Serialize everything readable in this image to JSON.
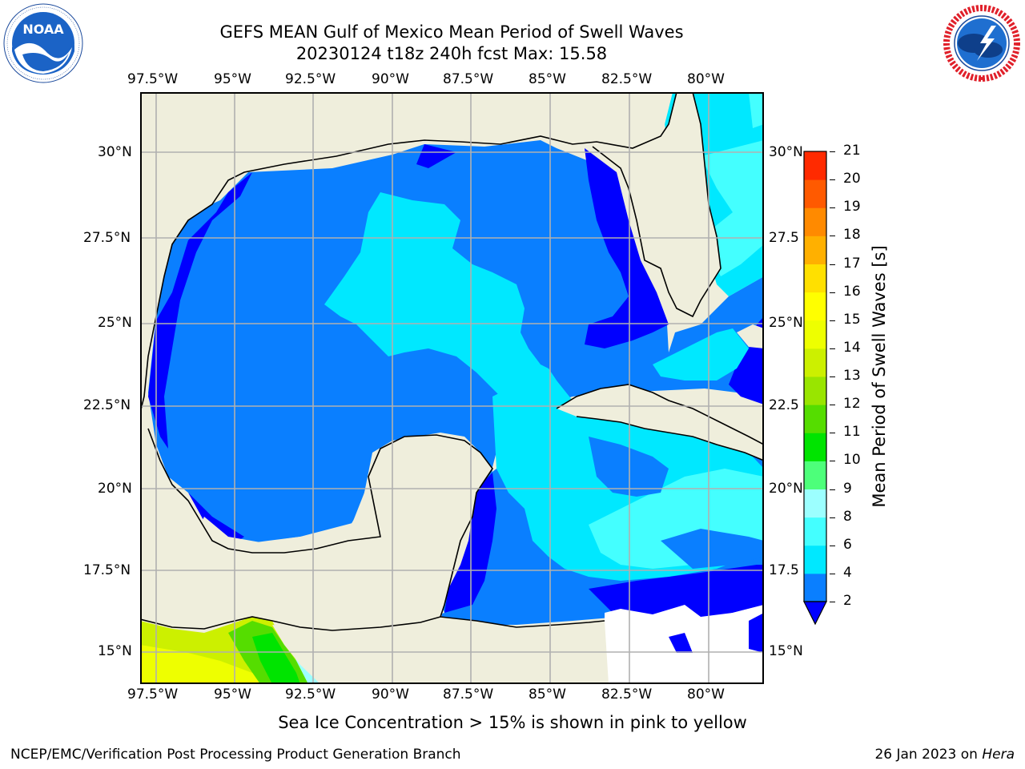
{
  "header": {
    "title_line1": "GEFS MEAN Gulf of Mexico Mean Period of Swell Waves",
    "title_line2": "20230124 t18z 240h fcst   Max: 15.58"
  },
  "logos": {
    "left": {
      "name": "NOAA",
      "ring_text": "NATIONAL OCEANIC AND ATMOSPHERIC ADMINISTRATION · U.S. DEPARTMENT OF COMMERCE"
    },
    "right": {
      "name": "NATIONAL WEATHER SERVICE"
    }
  },
  "map": {
    "lon_labels": [
      "97.5°W",
      "95°W",
      "92.5°W",
      "90°W",
      "87.5°W",
      "85°W",
      "82.5°W",
      "80°W"
    ],
    "lat_labels_left": [
      "30°N",
      "27.5°N",
      "25°N",
      "22.5°N",
      "20°N",
      "17.5°N",
      "15°N"
    ],
    "lat_labels_right": [
      "30°N",
      "27.5",
      "25°N",
      "22.5",
      "20°N",
      "17.5",
      "15°N"
    ],
    "colors": {
      "land": "#efeedc",
      "missing": "#ffffff",
      "grid": "#b0b0b0",
      "coast": "#000000"
    }
  },
  "colorbar": {
    "label": "Mean Period of Swell Waves [s]",
    "ticks": [
      "2",
      "4",
      "6",
      "8",
      "9",
      "10",
      "11",
      "12",
      "13",
      "14",
      "15",
      "16",
      "17",
      "18",
      "19",
      "20",
      "21"
    ],
    "extend_color": "#0000ff",
    "band_colors": [
      "#0a7fff",
      "#00e8ff",
      "#44ffff",
      "#9cffff",
      "#4dff7a",
      "#00e400",
      "#55dd00",
      "#99e500",
      "#ccf000",
      "#eeff00",
      "#ffff00",
      "#ffe000",
      "#ffb000",
      "#ff8a00",
      "#ff5a00",
      "#ff2a00"
    ]
  },
  "footer": {
    "sea_ice_note": "Sea Ice Concentration > 15% is shown in pink to yellow",
    "left_text": "NCEP/EMC/Verification Post Processing Product Generation Branch",
    "right_prefix": "26 Jan 2023 on ",
    "right_host": "Hera"
  }
}
